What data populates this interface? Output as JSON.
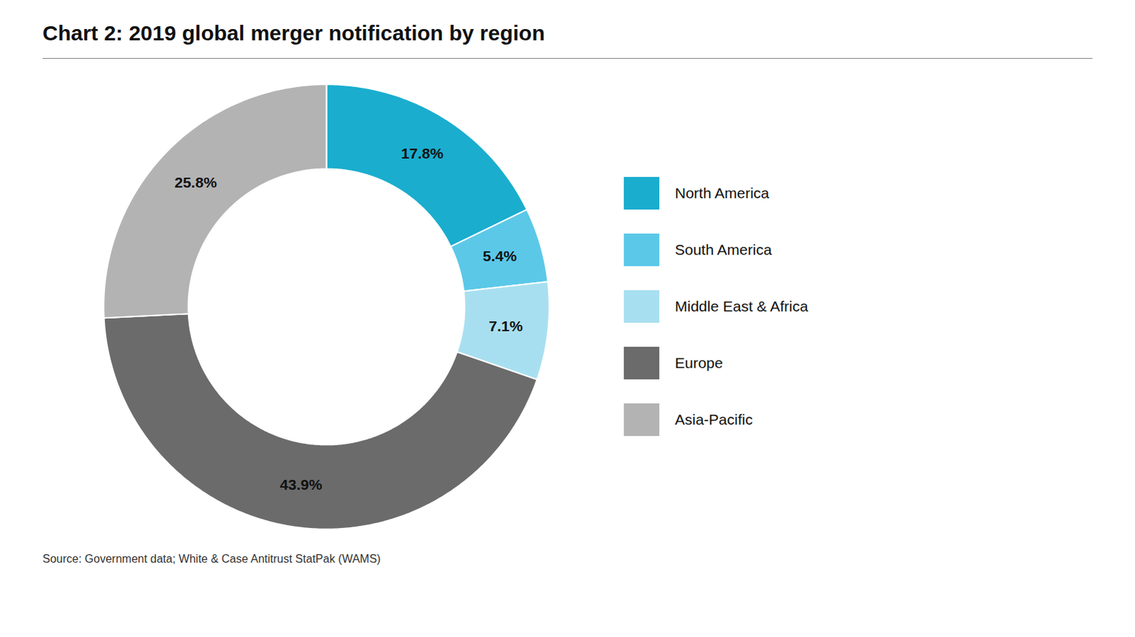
{
  "chart_data": {
    "type": "donut",
    "title": "Chart 2: 2019 global merger notification by region",
    "caption": "Source: Government data; White & Case Antitrust StatPak (WAMS)",
    "categories": [
      "North America",
      "South America",
      "Middle East & Africa",
      "Europe",
      "Asia-Pacific"
    ],
    "values": [
      17.8,
      5.4,
      7.1,
      43.9,
      25.8
    ],
    "value_labels": [
      "17.8%",
      "5.4%",
      "7.1%",
      "43.9%",
      "25.8%"
    ],
    "colors": [
      "#1aadce",
      "#5bc8e8",
      "#a8dff0",
      "#6b6b6b",
      "#b3b3b3"
    ],
    "data_labels": true,
    "legend": "right"
  }
}
